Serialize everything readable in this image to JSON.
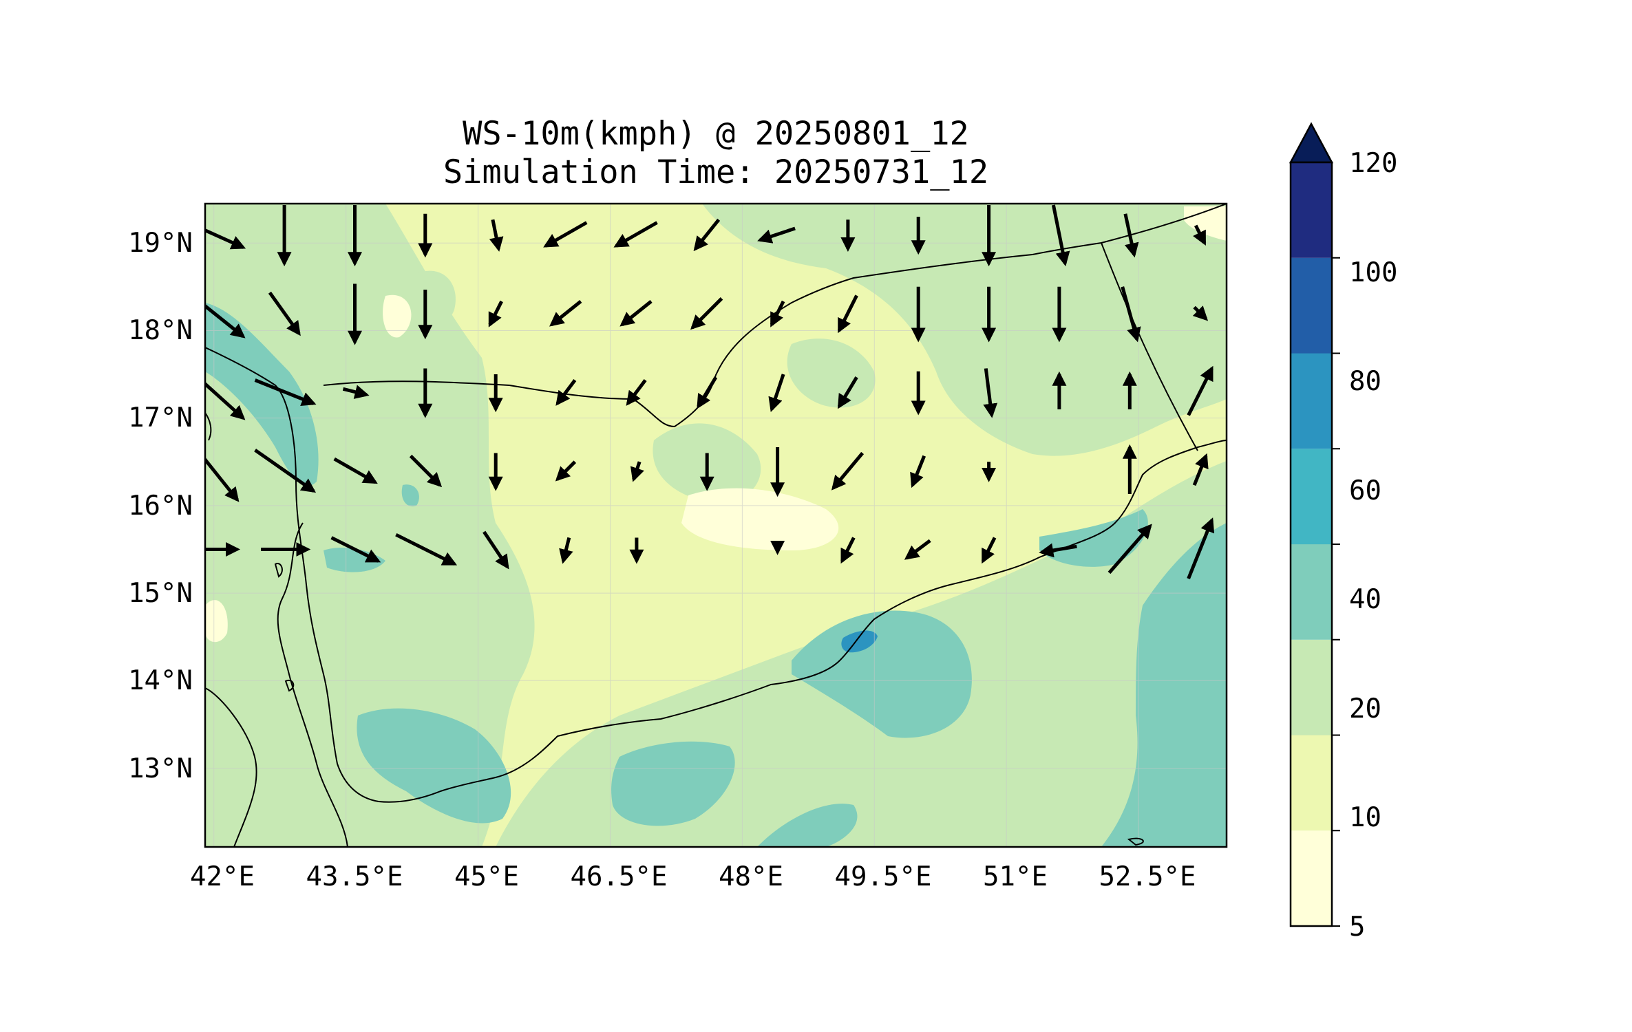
{
  "figure": {
    "title_line1": "WS-10m(kmph) @ 20250801_12",
    "title_line2": "Simulation Time: 20250731_12"
  },
  "map": {
    "projection": "PlateCarree",
    "lon_range": [
      41.9,
      53.5
    ],
    "lat_range": [
      12.1,
      19.45
    ],
    "grid": true,
    "longitude_labels": [
      "42°E",
      "43.5°E",
      "45°E",
      "46.5°E",
      "48°E",
      "49.5°E",
      "51°E",
      "52.5°E"
    ],
    "latitude_labels": [
      "19°N",
      "18°N",
      "17°N",
      "16°N",
      "15°N",
      "14°N",
      "13°N"
    ],
    "longitudes": [
      42,
      43.5,
      45,
      46.5,
      48,
      49.5,
      51,
      52.5
    ],
    "latitudes": [
      19,
      18,
      17,
      16,
      15,
      14,
      13
    ]
  },
  "colorbar": {
    "label_values": [
      "5",
      "10",
      "20",
      "40",
      "60",
      "80",
      "100",
      "120"
    ],
    "levels": [
      5,
      10,
      20,
      40,
      60,
      80,
      100,
      120
    ],
    "colors": [
      "#ffffd9",
      "#edf8b1",
      "#c7e9b4",
      "#7fcdbb",
      "#41b6c4",
      "#2c94c0",
      "#225ea8",
      "#1f2c80"
    ],
    "extend": "max",
    "extend_color": "#081d58"
  },
  "chart_data": {
    "type": "heatmap",
    "title": "WS-10m(kmph) @ 20250801_12",
    "subtitle": "Simulation Time: 20250731_12",
    "variable": "10 m wind speed (kmph) with wind direction arrows",
    "xlim": [
      41.9,
      53.5
    ],
    "ylim": [
      12.1,
      19.45
    ],
    "grid": true,
    "colorbar_placement": "right",
    "levels": [
      5,
      10,
      20,
      40,
      60,
      80,
      100,
      120
    ],
    "patches": [
      {
        "lon": 42.7,
        "lat": 17.3,
        "level": 40
      },
      {
        "lon": 42.3,
        "lat": 17.0,
        "level": 40
      },
      {
        "lon": 43.6,
        "lat": 15.2,
        "level": 40
      },
      {
        "lon": 44.5,
        "lat": 13.1,
        "level": 40
      },
      {
        "lon": 45.2,
        "lat": 12.8,
        "level": 40
      },
      {
        "lon": 47.3,
        "lat": 12.9,
        "level": 40
      },
      {
        "lon": 49.2,
        "lat": 14.3,
        "level": 40
      },
      {
        "lon": 50.0,
        "lat": 13.8,
        "level": 40
      },
      {
        "lon": 49.2,
        "lat": 12.3,
        "level": 40
      },
      {
        "lon": 52.7,
        "lat": 15.4,
        "level": 40
      },
      {
        "lon": 53.2,
        "lat": 13.5,
        "level": 40
      },
      {
        "lon": 53.2,
        "lat": 12.5,
        "level": 40
      },
      {
        "lon": 52.2,
        "lat": 15.0,
        "level": 40
      },
      {
        "lon": 49.4,
        "lat": 14.5,
        "level": 60
      }
    ],
    "wind_vectors": [
      {
        "lon": 42.0,
        "lat": 19.1,
        "u": 1.0,
        "v": -0.45
      },
      {
        "lon": 42.8,
        "lat": 19.1,
        "u": 0.0,
        "v": -1.0
      },
      {
        "lon": 43.6,
        "lat": 19.1,
        "u": 0.0,
        "v": -1.0
      },
      {
        "lon": 44.4,
        "lat": 19.1,
        "u": 0.0,
        "v": -0.7
      },
      {
        "lon": 45.2,
        "lat": 19.1,
        "u": 0.1,
        "v": -0.5
      },
      {
        "lon": 46.0,
        "lat": 19.1,
        "u": -0.7,
        "v": -0.4
      },
      {
        "lon": 46.8,
        "lat": 19.1,
        "u": -0.7,
        "v": -0.4
      },
      {
        "lon": 47.6,
        "lat": 19.1,
        "u": -0.4,
        "v": -0.5
      },
      {
        "lon": 48.4,
        "lat": 19.1,
        "u": -0.6,
        "v": -0.2
      },
      {
        "lon": 49.2,
        "lat": 19.1,
        "u": 0.0,
        "v": -0.5
      },
      {
        "lon": 50.0,
        "lat": 19.1,
        "u": 0.0,
        "v": -0.6
      },
      {
        "lon": 50.8,
        "lat": 19.1,
        "u": 0.0,
        "v": -1.0
      },
      {
        "lon": 51.6,
        "lat": 19.1,
        "u": 0.2,
        "v": -1.0
      },
      {
        "lon": 52.4,
        "lat": 19.1,
        "u": 0.15,
        "v": -0.7
      },
      {
        "lon": 53.2,
        "lat": 19.1,
        "u": 0.15,
        "v": -0.3
      },
      {
        "lon": 42.0,
        "lat": 18.2,
        "u": 1.0,
        "v": -0.8
      },
      {
        "lon": 42.8,
        "lat": 18.2,
        "u": 0.5,
        "v": -0.7
      },
      {
        "lon": 43.6,
        "lat": 18.2,
        "u": 0.0,
        "v": -1.0
      },
      {
        "lon": 44.4,
        "lat": 18.2,
        "u": 0.0,
        "v": -0.8
      },
      {
        "lon": 45.2,
        "lat": 18.2,
        "u": -0.2,
        "v": -0.4
      },
      {
        "lon": 46.0,
        "lat": 18.2,
        "u": -0.5,
        "v": -0.4
      },
      {
        "lon": 46.8,
        "lat": 18.2,
        "u": -0.5,
        "v": -0.4
      },
      {
        "lon": 47.6,
        "lat": 18.2,
        "u": -0.5,
        "v": -0.5
      },
      {
        "lon": 48.4,
        "lat": 18.2,
        "u": -0.2,
        "v": -0.4
      },
      {
        "lon": 49.2,
        "lat": 18.2,
        "u": -0.3,
        "v": -0.6
      },
      {
        "lon": 50.0,
        "lat": 18.2,
        "u": 0.0,
        "v": -0.9
      },
      {
        "lon": 50.8,
        "lat": 18.2,
        "u": 0.0,
        "v": -0.9
      },
      {
        "lon": 51.6,
        "lat": 18.2,
        "u": 0.0,
        "v": -0.9
      },
      {
        "lon": 52.4,
        "lat": 18.2,
        "u": 0.25,
        "v": -0.9
      },
      {
        "lon": 53.2,
        "lat": 18.2,
        "u": 0.2,
        "v": -0.2
      },
      {
        "lon": 42.0,
        "lat": 17.3,
        "u": 1.0,
        "v": -0.9
      },
      {
        "lon": 42.8,
        "lat": 17.3,
        "u": 1.0,
        "v": -0.4
      },
      {
        "lon": 43.6,
        "lat": 17.3,
        "u": 0.4,
        "v": -0.1
      },
      {
        "lon": 44.4,
        "lat": 17.3,
        "u": 0.0,
        "v": -0.8
      },
      {
        "lon": 45.2,
        "lat": 17.3,
        "u": 0.0,
        "v": -0.6
      },
      {
        "lon": 46.0,
        "lat": 17.3,
        "u": -0.3,
        "v": -0.4
      },
      {
        "lon": 46.8,
        "lat": 17.3,
        "u": -0.3,
        "v": -0.4
      },
      {
        "lon": 47.6,
        "lat": 17.3,
        "u": -0.3,
        "v": -0.5
      },
      {
        "lon": 48.4,
        "lat": 17.3,
        "u": -0.2,
        "v": -0.6
      },
      {
        "lon": 49.2,
        "lat": 17.3,
        "u": -0.3,
        "v": -0.5
      },
      {
        "lon": 50.0,
        "lat": 17.3,
        "u": 0.0,
        "v": -0.7
      },
      {
        "lon": 50.8,
        "lat": 17.3,
        "u": 0.1,
        "v": -0.8
      },
      {
        "lon": 51.6,
        "lat": 17.3,
        "u": 0.0,
        "v": 0.6
      },
      {
        "lon": 52.4,
        "lat": 17.3,
        "u": 0.0,
        "v": 0.6
      },
      {
        "lon": 53.2,
        "lat": 17.3,
        "u": 0.4,
        "v": 0.8
      },
      {
        "lon": 42.0,
        "lat": 16.4,
        "u": 0.8,
        "v": -1.0
      },
      {
        "lon": 42.8,
        "lat": 16.4,
        "u": 1.0,
        "v": -0.7
      },
      {
        "lon": 43.6,
        "lat": 16.4,
        "u": 0.7,
        "v": -0.4
      },
      {
        "lon": 44.4,
        "lat": 16.4,
        "u": 0.5,
        "v": -0.5
      },
      {
        "lon": 45.2,
        "lat": 16.4,
        "u": 0.0,
        "v": -0.6
      },
      {
        "lon": 46.0,
        "lat": 16.4,
        "u": -0.3,
        "v": -0.3
      },
      {
        "lon": 46.8,
        "lat": 16.4,
        "u": -0.1,
        "v": -0.3
      },
      {
        "lon": 47.6,
        "lat": 16.4,
        "u": 0.0,
        "v": -0.6
      },
      {
        "lon": 48.4,
        "lat": 16.4,
        "u": 0.0,
        "v": -0.8
      },
      {
        "lon": 49.2,
        "lat": 16.4,
        "u": -0.5,
        "v": -0.6
      },
      {
        "lon": 50.0,
        "lat": 16.4,
        "u": -0.2,
        "v": -0.5
      },
      {
        "lon": 50.8,
        "lat": 16.4,
        "u": 0.0,
        "v": -0.3
      },
      {
        "lon": 52.4,
        "lat": 16.4,
        "u": 0.0,
        "v": 0.8
      },
      {
        "lon": 53.2,
        "lat": 16.4,
        "u": 0.2,
        "v": 0.5
      },
      {
        "lon": 42.0,
        "lat": 15.5,
        "u": 0.8,
        "v": 0.0
      },
      {
        "lon": 42.8,
        "lat": 15.5,
        "u": 0.8,
        "v": 0.0
      },
      {
        "lon": 43.6,
        "lat": 15.5,
        "u": 0.8,
        "v": -0.4
      },
      {
        "lon": 44.4,
        "lat": 15.5,
        "u": 1.0,
        "v": -0.5
      },
      {
        "lon": 45.2,
        "lat": 15.5,
        "u": 0.4,
        "v": -0.6
      },
      {
        "lon": 46.0,
        "lat": 15.5,
        "u": -0.1,
        "v": -0.4
      },
      {
        "lon": 46.8,
        "lat": 15.5,
        "u": 0.0,
        "v": -0.4
      },
      {
        "lon": 48.4,
        "lat": 15.5,
        "u": 0.0,
        "v": -0.1
      },
      {
        "lon": 49.2,
        "lat": 15.5,
        "u": -0.2,
        "v": -0.4
      },
      {
        "lon": 50.0,
        "lat": 15.5,
        "u": -0.4,
        "v": -0.3
      },
      {
        "lon": 50.8,
        "lat": 15.5,
        "u": -0.2,
        "v": -0.4
      },
      {
        "lon": 51.6,
        "lat": 15.5,
        "u": -0.6,
        "v": -0.1
      },
      {
        "lon": 52.4,
        "lat": 15.5,
        "u": 0.7,
        "v": 0.8
      },
      {
        "lon": 53.2,
        "lat": 15.5,
        "u": 0.4,
        "v": 1.0
      }
    ]
  }
}
